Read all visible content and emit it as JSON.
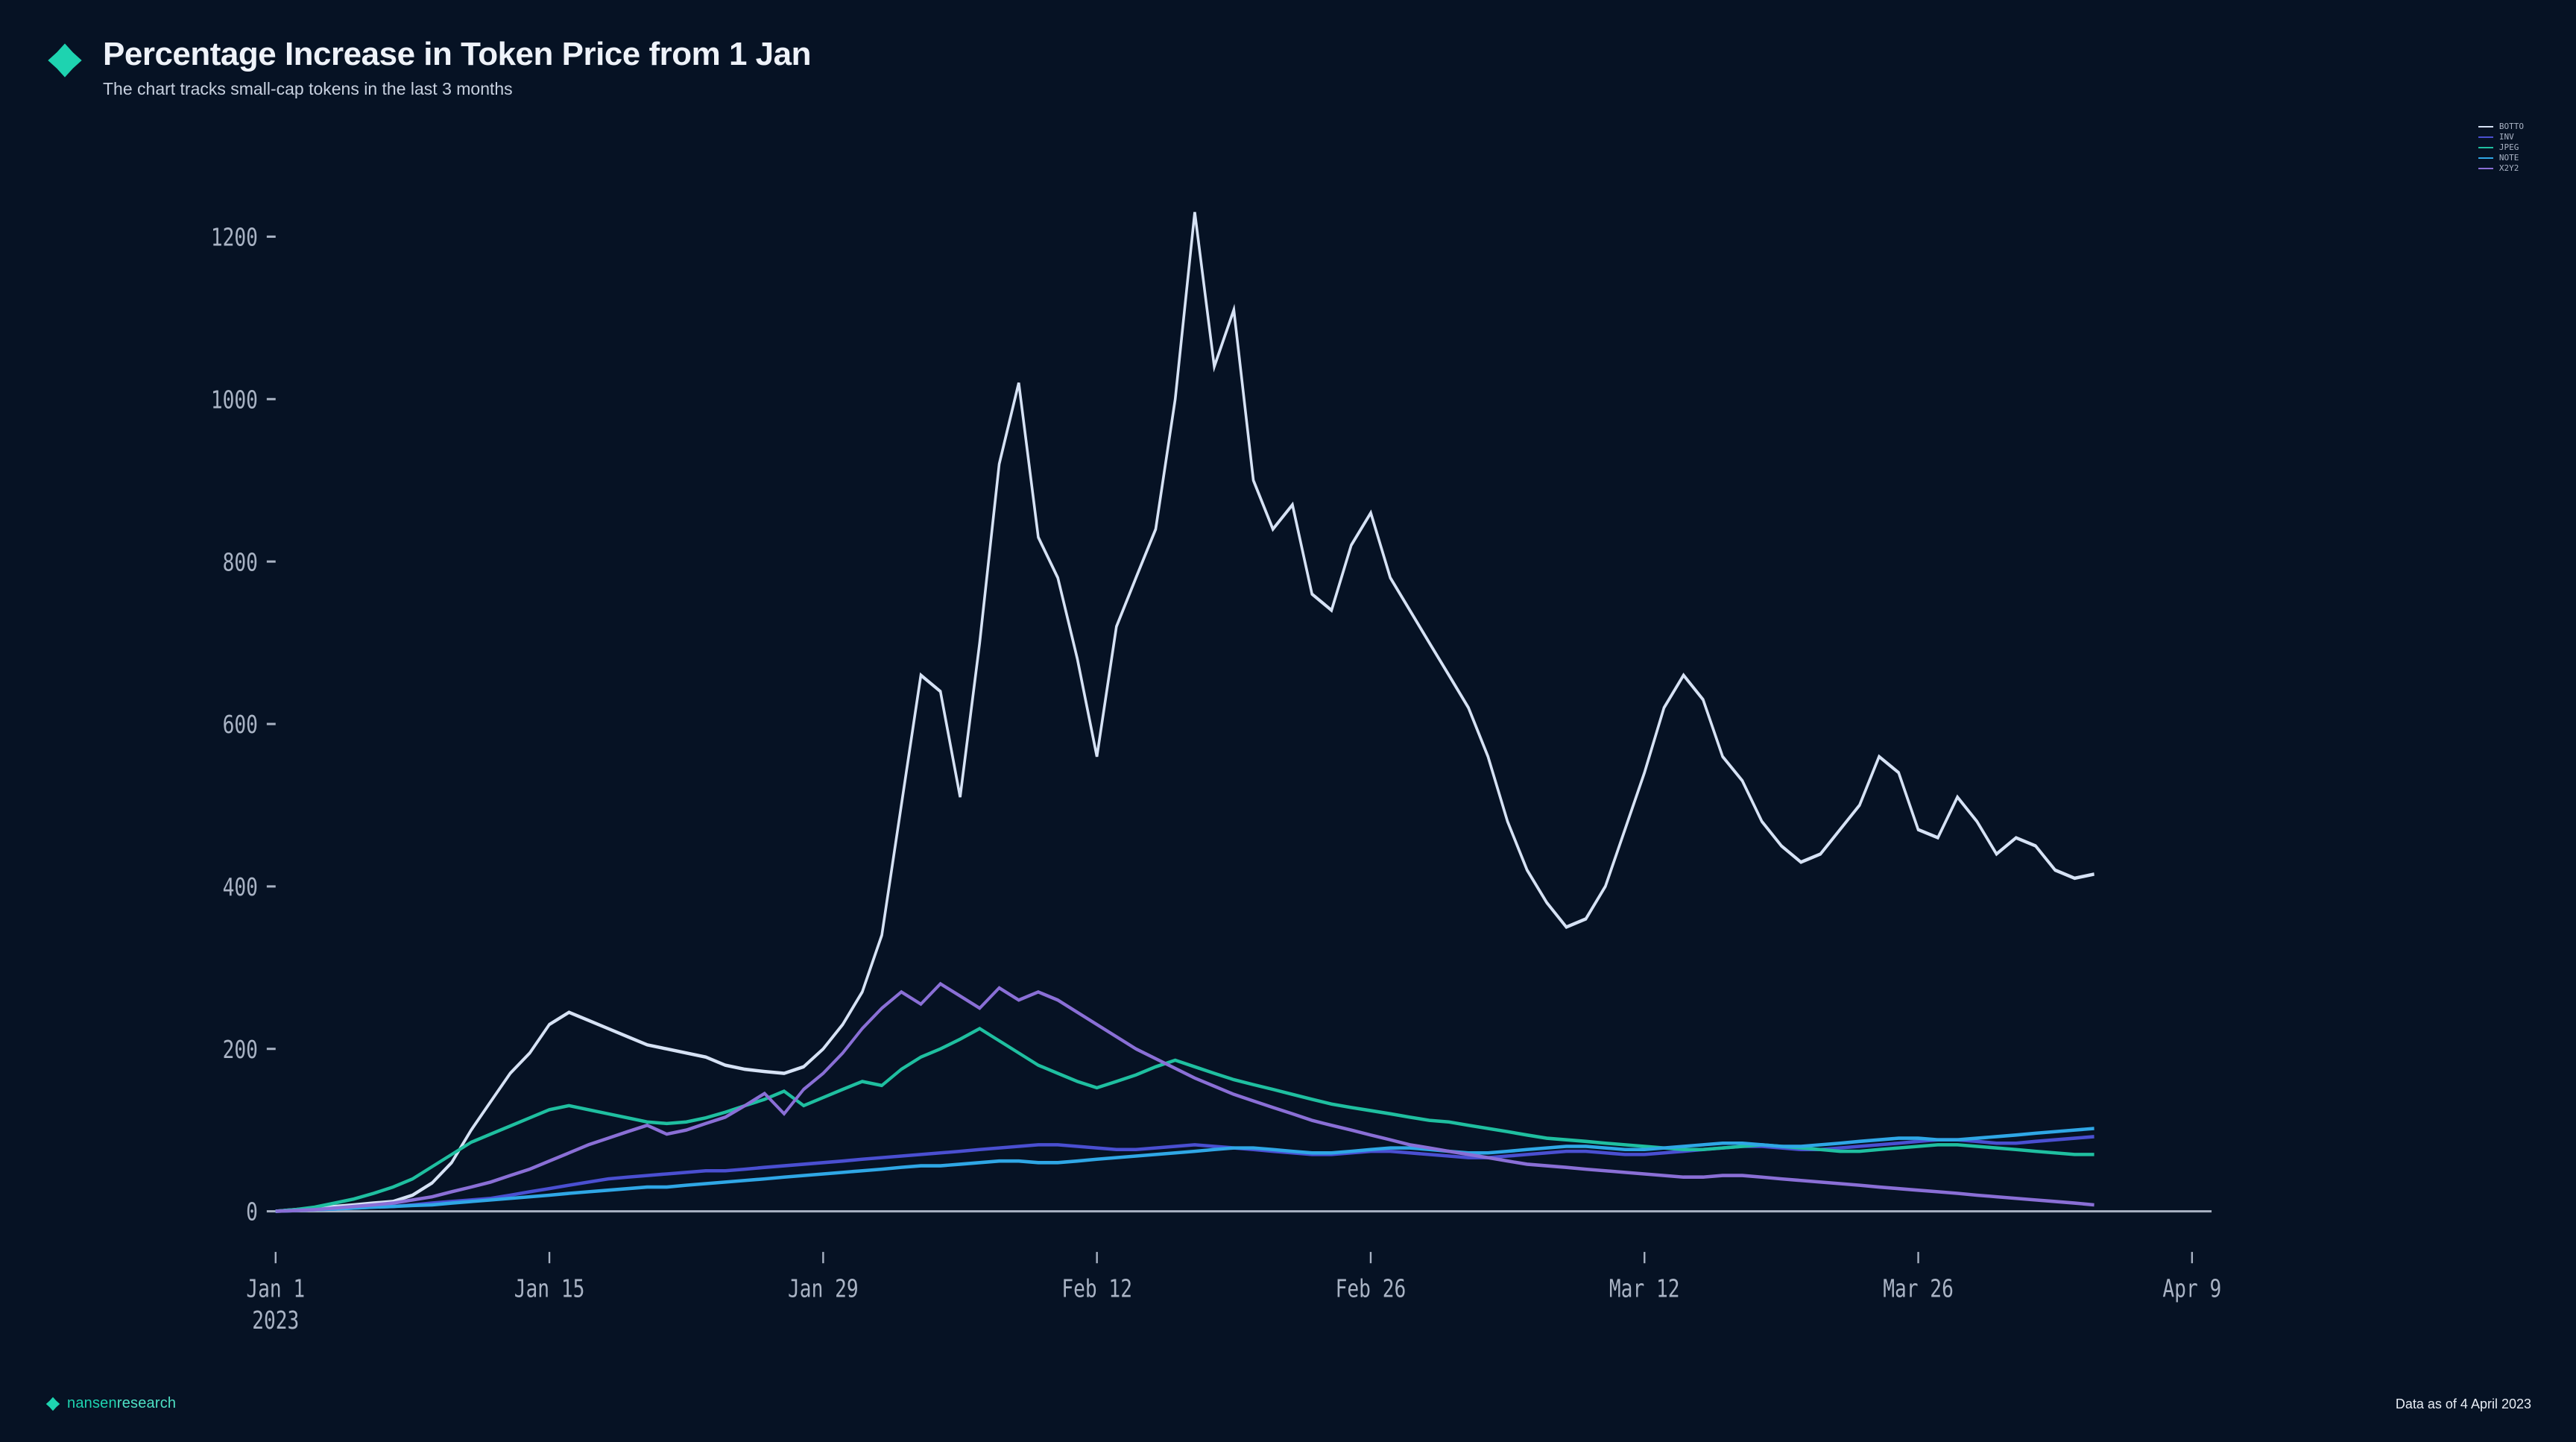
{
  "header": {
    "title": "Percentage Increase in Token Price from 1 Jan",
    "subtitle": "The chart tracks small-cap tokens in the last 3 months"
  },
  "brand": {
    "name_bold": "nansen",
    "name_light": "research",
    "accent_color": "#1ed3b0"
  },
  "footer": {
    "data_date": "Data as of 4 April 2023"
  },
  "chart": {
    "type": "line",
    "background_color": "#061224",
    "axis_color": "#a9b3c4",
    "text_color": "#a9b3c4",
    "axis_fontsize": 11,
    "line_width": 1.5,
    "ylim": [
      -50,
      1300
    ],
    "yticks": [
      0,
      200,
      400,
      600,
      800,
      1000,
      1200
    ],
    "x_start_index": 0,
    "x_end_index": 99,
    "xticks": [
      {
        "idx": 0,
        "label": "Jan 1",
        "sub": "2023"
      },
      {
        "idx": 14,
        "label": "Jan 15",
        "sub": ""
      },
      {
        "idx": 28,
        "label": "Jan 29",
        "sub": ""
      },
      {
        "idx": 42,
        "label": "Feb 12",
        "sub": ""
      },
      {
        "idx": 56,
        "label": "Feb 26",
        "sub": ""
      },
      {
        "idx": 70,
        "label": "Mar 12",
        "sub": ""
      },
      {
        "idx": 84,
        "label": "Mar 26",
        "sub": ""
      },
      {
        "idx": 98,
        "label": "Apr 9",
        "sub": ""
      }
    ],
    "series": [
      {
        "name": "BOTTO",
        "color": "#d6e2f5",
        "values": [
          0,
          2,
          4,
          6,
          8,
          10,
          12,
          20,
          35,
          60,
          100,
          135,
          170,
          195,
          230,
          245,
          235,
          225,
          215,
          205,
          200,
          195,
          190,
          180,
          175,
          172,
          170,
          178,
          200,
          230,
          270,
          340,
          500,
          660,
          640,
          510,
          700,
          920,
          1020,
          830,
          780,
          680,
          560,
          720,
          780,
          840,
          1000,
          1230,
          1040,
          1110,
          900,
          840,
          870,
          760,
          740,
          820,
          860,
          780,
          740,
          700,
          660,
          620,
          560,
          480,
          420,
          380,
          350,
          360,
          400,
          470,
          540,
          620,
          660,
          630,
          560,
          530,
          480,
          450,
          430,
          440,
          470,
          500,
          560,
          540,
          470,
          460,
          510,
          480,
          440,
          460,
          450,
          420,
          410,
          415
        ]
      },
      {
        "name": "INV",
        "color": "#4a4fd1",
        "values": [
          0,
          1,
          2,
          3,
          4,
          5,
          6,
          8,
          10,
          12,
          14,
          16,
          20,
          24,
          28,
          32,
          36,
          40,
          42,
          44,
          46,
          48,
          50,
          50,
          52,
          54,
          56,
          58,
          60,
          62,
          64,
          66,
          68,
          70,
          72,
          74,
          76,
          78,
          80,
          82,
          82,
          80,
          78,
          76,
          76,
          78,
          80,
          82,
          80,
          78,
          76,
          74,
          72,
          70,
          70,
          72,
          74,
          74,
          72,
          70,
          68,
          66,
          66,
          68,
          70,
          72,
          74,
          74,
          72,
          70,
          70,
          72,
          74,
          76,
          78,
          80,
          80,
          78,
          76,
          76,
          78,
          80,
          82,
          84,
          86,
          88,
          88,
          86,
          84,
          84,
          86,
          88,
          90,
          92
        ]
      },
      {
        "name": "JPEG",
        "color": "#1fbfa0",
        "values": [
          0,
          2,
          5,
          10,
          15,
          22,
          30,
          40,
          55,
          70,
          85,
          95,
          105,
          115,
          125,
          130,
          125,
          120,
          115,
          110,
          108,
          110,
          115,
          122,
          130,
          138,
          148,
          130,
          140,
          150,
          160,
          155,
          175,
          190,
          200,
          212,
          225,
          210,
          195,
          180,
          170,
          160,
          152,
          160,
          168,
          178,
          186,
          178,
          170,
          162,
          156,
          150,
          144,
          138,
          132,
          128,
          124,
          120,
          116,
          112,
          110,
          106,
          102,
          98,
          94,
          90,
          88,
          86,
          84,
          82,
          80,
          78,
          76,
          76,
          78,
          80,
          82,
          80,
          78,
          76,
          74,
          74,
          76,
          78,
          80,
          82,
          82,
          80,
          78,
          76,
          74,
          72,
          70,
          70
        ]
      },
      {
        "name": "NOTE",
        "color": "#2fa7e6",
        "values": [
          0,
          1,
          2,
          3,
          4,
          5,
          6,
          7,
          8,
          10,
          12,
          14,
          16,
          18,
          20,
          22,
          24,
          26,
          28,
          30,
          30,
          32,
          34,
          36,
          38,
          40,
          42,
          44,
          46,
          48,
          50,
          52,
          54,
          56,
          56,
          58,
          60,
          62,
          62,
          60,
          60,
          62,
          64,
          66,
          68,
          70,
          72,
          74,
          76,
          78,
          78,
          76,
          74,
          72,
          72,
          74,
          76,
          78,
          78,
          76,
          74,
          72,
          72,
          74,
          76,
          78,
          80,
          80,
          78,
          76,
          76,
          78,
          80,
          82,
          84,
          84,
          82,
          80,
          80,
          82,
          84,
          86,
          88,
          90,
          90,
          88,
          88,
          90,
          92,
          94,
          96,
          98,
          100,
          102
        ]
      },
      {
        "name": "X2Y2",
        "color": "#8a6fd6",
        "values": [
          0,
          1,
          2,
          4,
          6,
          8,
          10,
          14,
          18,
          24,
          30,
          36,
          44,
          52,
          62,
          72,
          82,
          90,
          98,
          106,
          95,
          100,
          108,
          116,
          130,
          145,
          120,
          150,
          170,
          195,
          225,
          250,
          270,
          255,
          280,
          265,
          250,
          275,
          260,
          270,
          260,
          245,
          230,
          215,
          200,
          188,
          176,
          164,
          154,
          144,
          136,
          128,
          120,
          112,
          106,
          100,
          94,
          88,
          82,
          78,
          74,
          70,
          66,
          62,
          58,
          56,
          54,
          52,
          50,
          48,
          46,
          44,
          42,
          42,
          44,
          44,
          42,
          40,
          38,
          36,
          34,
          32,
          30,
          28,
          26,
          24,
          22,
          20,
          18,
          16,
          14,
          12,
          10,
          8
        ]
      }
    ]
  }
}
